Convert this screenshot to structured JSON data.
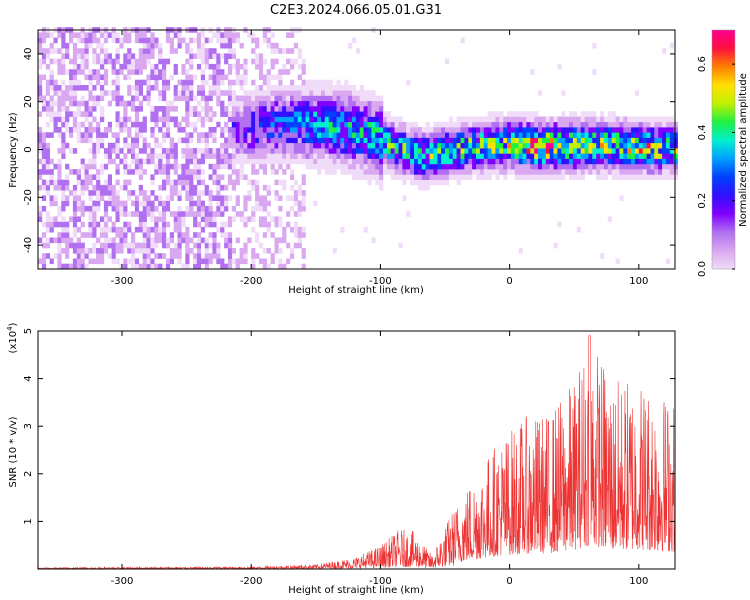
{
  "title": "C2E3.2024.066.05.01.G31",
  "colors": {
    "snr_line": "#ee3333",
    "frame": "#000000",
    "colormap": [
      "#f0dcf8",
      "#d9a8f0",
      "#b070f0",
      "#8000ff",
      "#3010ff",
      "#0040ff",
      "#00a0ff",
      "#00f0d0",
      "#20f040",
      "#c0f000",
      "#ffe000",
      "#ff8000",
      "#ff1040",
      "#ff0090"
    ]
  },
  "chart_data": [
    {
      "type": "heatmap",
      "xlabel": "Height of straight line (km)",
      "ylabel": "Frequency (Hz)",
      "xlim": [
        -365,
        128
      ],
      "ylim": [
        -50,
        50
      ],
      "xticks": [
        -300,
        -200,
        -100,
        0,
        100
      ],
      "xtick_labels": [
        "-300",
        "-200",
        "-100",
        "0",
        "100"
      ],
      "yticks": [
        -40,
        -20,
        0,
        20,
        40
      ],
      "ytick_labels": [
        "-40",
        "-20",
        "0",
        "20",
        "40"
      ],
      "colorbar": {
        "label": "Normalized spectral amplitude",
        "range": [
          0,
          0.7
        ],
        "ticks": [
          0.0,
          0.2,
          0.4,
          0.6
        ],
        "tick_labels": [
          "0.0",
          "0.2",
          "0.4",
          "0.6"
        ]
      },
      "ridge_center_hz": [
        [
          -215,
          7
        ],
        [
          -180,
          10
        ],
        [
          -150,
          9
        ],
        [
          -130,
          8
        ],
        [
          -110,
          5
        ],
        [
          -90,
          0
        ],
        [
          -70,
          -4
        ],
        [
          -50,
          -2
        ],
        [
          -30,
          0
        ],
        [
          0,
          1
        ],
        [
          30,
          0
        ],
        [
          60,
          1
        ],
        [
          90,
          0
        ],
        [
          128,
          -1
        ]
      ],
      "ridge_peak_amplitude": [
        [
          -215,
          0.2
        ],
        [
          -160,
          0.35
        ],
        [
          -120,
          0.4
        ],
        [
          -80,
          0.42
        ],
        [
          -40,
          0.45
        ],
        [
          0,
          0.5
        ],
        [
          20,
          0.68
        ],
        [
          60,
          0.5
        ],
        [
          110,
          0.55
        ],
        [
          128,
          0.45
        ]
      ]
    },
    {
      "type": "line",
      "xlabel": "Height of straight line (km)",
      "ylabel": "SNR (10 * v/v)",
      "y_scale_label": "(x10",
      "y_scale_exp": "4",
      "y_scale_close": ")",
      "xlim": [
        -365,
        128
      ],
      "ylim": [
        0,
        5
      ],
      "xticks": [
        -300,
        -200,
        -100,
        0,
        100
      ],
      "xtick_labels": [
        "-300",
        "-200",
        "-100",
        "0",
        "100"
      ],
      "yticks": [
        1,
        2,
        3,
        4,
        5
      ],
      "ytick_labels": [
        "1",
        "2",
        "3",
        "4",
        "5"
      ],
      "series": [
        {
          "envelope_x": [
            -365,
            -200,
            -150,
            -120,
            -100,
            -85,
            -75,
            -60,
            -45,
            -30,
            -10,
            10,
            30,
            50,
            62,
            80,
            100,
            115,
            128
          ],
          "envelope_y": [
            0.03,
            0.05,
            0.1,
            0.25,
            0.5,
            0.85,
            0.8,
            0.3,
            1.2,
            1.9,
            2.7,
            3.2,
            3.3,
            4.0,
            5.0,
            4.0,
            4.1,
            3.8,
            3.6
          ]
        }
      ]
    }
  ]
}
